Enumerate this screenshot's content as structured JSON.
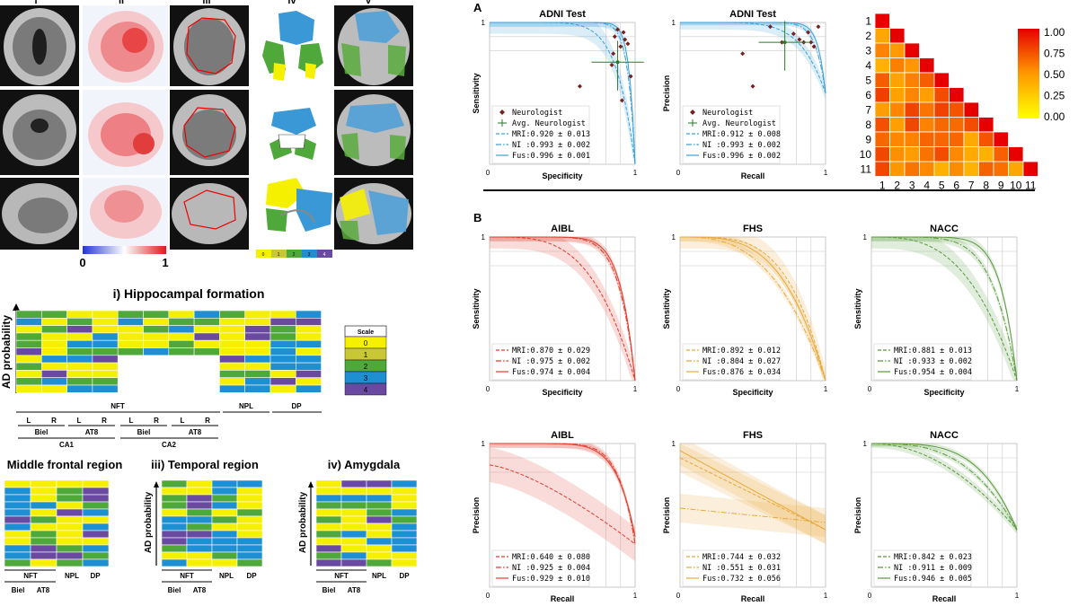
{
  "colors": {
    "mri_series": "#e03b2b",
    "fhs_series": "#e8a93a",
    "nacc_series": "#5a9a3e",
    "adni_series": "#3aa0d8",
    "scale": [
      "#f5f000",
      "#c8c834",
      "#4ea83a",
      "#1e8fd0",
      "#6a4aa0"
    ],
    "heat_low": "#ffff00",
    "heat_high": "#e60000"
  },
  "left": {
    "roman_headers": [
      "i",
      "ii",
      "iii",
      "iv",
      "v"
    ],
    "colorbar": {
      "min": "0",
      "max": "1"
    },
    "small_scale_ticks": [
      "0",
      "1",
      "2",
      "3",
      "4"
    ],
    "hippocampal": {
      "title": "i) Hippocampal formation",
      "ylabel": "AD probability",
      "scale_title": "Scale",
      "scale_values": [
        "0",
        "1",
        "2",
        "3",
        "4"
      ],
      "group_nft": "NFT",
      "group_npl": "NPL",
      "group_dp": "DP",
      "lr": [
        "L",
        "R",
        "L",
        "R",
        "L",
        "R",
        "L",
        "R"
      ],
      "stains": [
        "Biel",
        "AT8",
        "Biel",
        "AT8"
      ],
      "regions": [
        "CA1",
        "CA2"
      ]
    },
    "middle_frontal": {
      "title": "Middle frontal region",
      "cols": [
        "NFT",
        "NPL",
        "DP"
      ],
      "stains": [
        "Biel",
        "AT8"
      ]
    },
    "temporal": {
      "title": "iii) Temporal region",
      "ylabel": "AD probability",
      "cols": [
        "NFT",
        "NPL",
        "DP"
      ],
      "stains": [
        "Biel",
        "AT8"
      ]
    },
    "amygdala": {
      "title": "iv) Amygdala",
      "ylabel": "AD probability",
      "cols": [
        "NFT",
        "NPL",
        "DP"
      ],
      "stains": [
        "Biel",
        "AT8"
      ]
    }
  },
  "panel_a_label": "A",
  "panel_b_label": "B",
  "heatmap": {
    "labels": [
      "1",
      "2",
      "3",
      "4",
      "5",
      "6",
      "7",
      "8",
      "9",
      "10",
      "11"
    ],
    "colorbar_ticks": [
      "1.00",
      "0.75",
      "0.50",
      "0.25",
      "0.00"
    ]
  },
  "chart_data": [
    {
      "type": "line",
      "title": "ADNI Test",
      "xlabel": "Specificity",
      "ylabel": "Sensitivity",
      "xlim": [
        0,
        1
      ],
      "ylim": [
        0,
        1
      ],
      "ticks": [
        "0",
        "1",
        "1"
      ],
      "legend": [
        {
          "name": "Neurologist"
        },
        {
          "name": "Avg. Neurologist"
        },
        {
          "name": "MRI:0.920 ± 0.013"
        },
        {
          "name": "NI :0.993 ± 0.002"
        },
        {
          "name": "Fus:0.996 ± 0.001"
        }
      ]
    },
    {
      "type": "line",
      "title": "ADNI Test",
      "xlabel": "Recall",
      "ylabel": "Precision",
      "xlim": [
        0,
        1
      ],
      "ylim": [
        0,
        1
      ],
      "ticks": [
        "0",
        "1",
        "1"
      ],
      "legend": [
        {
          "name": "Neurologist"
        },
        {
          "name": "Avg. Neurologist"
        },
        {
          "name": "MRI:0.912 ± 0.008"
        },
        {
          "name": "NI :0.993 ± 0.002"
        },
        {
          "name": "Fus:0.996 ± 0.002"
        }
      ]
    },
    {
      "type": "line",
      "title": "AIBL",
      "xlabel": "Specificity",
      "ylabel": "Sensitivity",
      "xlim": [
        0,
        1
      ],
      "ylim": [
        0,
        1
      ],
      "ticks": [
        "0",
        "1",
        "1"
      ],
      "legend": [
        {
          "name": "MRI:0.870 ± 0.029"
        },
        {
          "name": "NI :0.975 ± 0.002"
        },
        {
          "name": "Fus:0.974 ± 0.004"
        }
      ]
    },
    {
      "type": "line",
      "title": "FHS",
      "xlabel": "Specificity",
      "ylabel": "Sensitivity",
      "xlim": [
        0,
        1
      ],
      "ylim": [
        0,
        1
      ],
      "ticks": [
        "0",
        "1",
        "1"
      ],
      "legend": [
        {
          "name": "MRI:0.892 ± 0.012"
        },
        {
          "name": "NI :0.804 ± 0.027"
        },
        {
          "name": "Fus:0.876 ± 0.034"
        }
      ]
    },
    {
      "type": "line",
      "title": "NACC",
      "xlabel": "Specificity",
      "ylabel": "Sensitivity",
      "xlim": [
        0,
        1
      ],
      "ylim": [
        0,
        1
      ],
      "ticks": [
        "0",
        "1",
        "1"
      ],
      "legend": [
        {
          "name": "MRI:0.881 ± 0.013"
        },
        {
          "name": "NI :0.933 ± 0.002"
        },
        {
          "name": "Fus:0.954 ± 0.004"
        }
      ]
    },
    {
      "type": "line",
      "title": "AIBL",
      "xlabel": "Recall",
      "ylabel": "Precision",
      "xlim": [
        0,
        1
      ],
      "ylim": [
        0,
        1
      ],
      "ticks": [
        "0",
        "1",
        "1"
      ],
      "legend": [
        {
          "name": "MRI:0.640 ± 0.080"
        },
        {
          "name": "NI :0.925 ± 0.004"
        },
        {
          "name": "Fus:0.929 ± 0.010"
        }
      ]
    },
    {
      "type": "line",
      "title": "FHS",
      "xlabel": "Recall",
      "ylabel": "Precision",
      "xlim": [
        0,
        1
      ],
      "ylim": [
        0,
        1
      ],
      "ticks": [
        "0",
        "1",
        "1"
      ],
      "legend": [
        {
          "name": "MRI:0.744 ± 0.032"
        },
        {
          "name": "NI :0.551 ± 0.031"
        },
        {
          "name": "Fus:0.732 ± 0.056"
        }
      ]
    },
    {
      "type": "line",
      "title": "NACC",
      "xlabel": "Recall",
      "ylabel": "Precision",
      "xlim": [
        0,
        1
      ],
      "ylim": [
        0,
        1
      ],
      "ticks": [
        "0",
        "1",
        "1"
      ],
      "legend": [
        {
          "name": "MRI:0.842 ± 0.023"
        },
        {
          "name": "NI :0.911 ± 0.009"
        },
        {
          "name": "Fus:0.946 ± 0.005"
        }
      ]
    }
  ]
}
